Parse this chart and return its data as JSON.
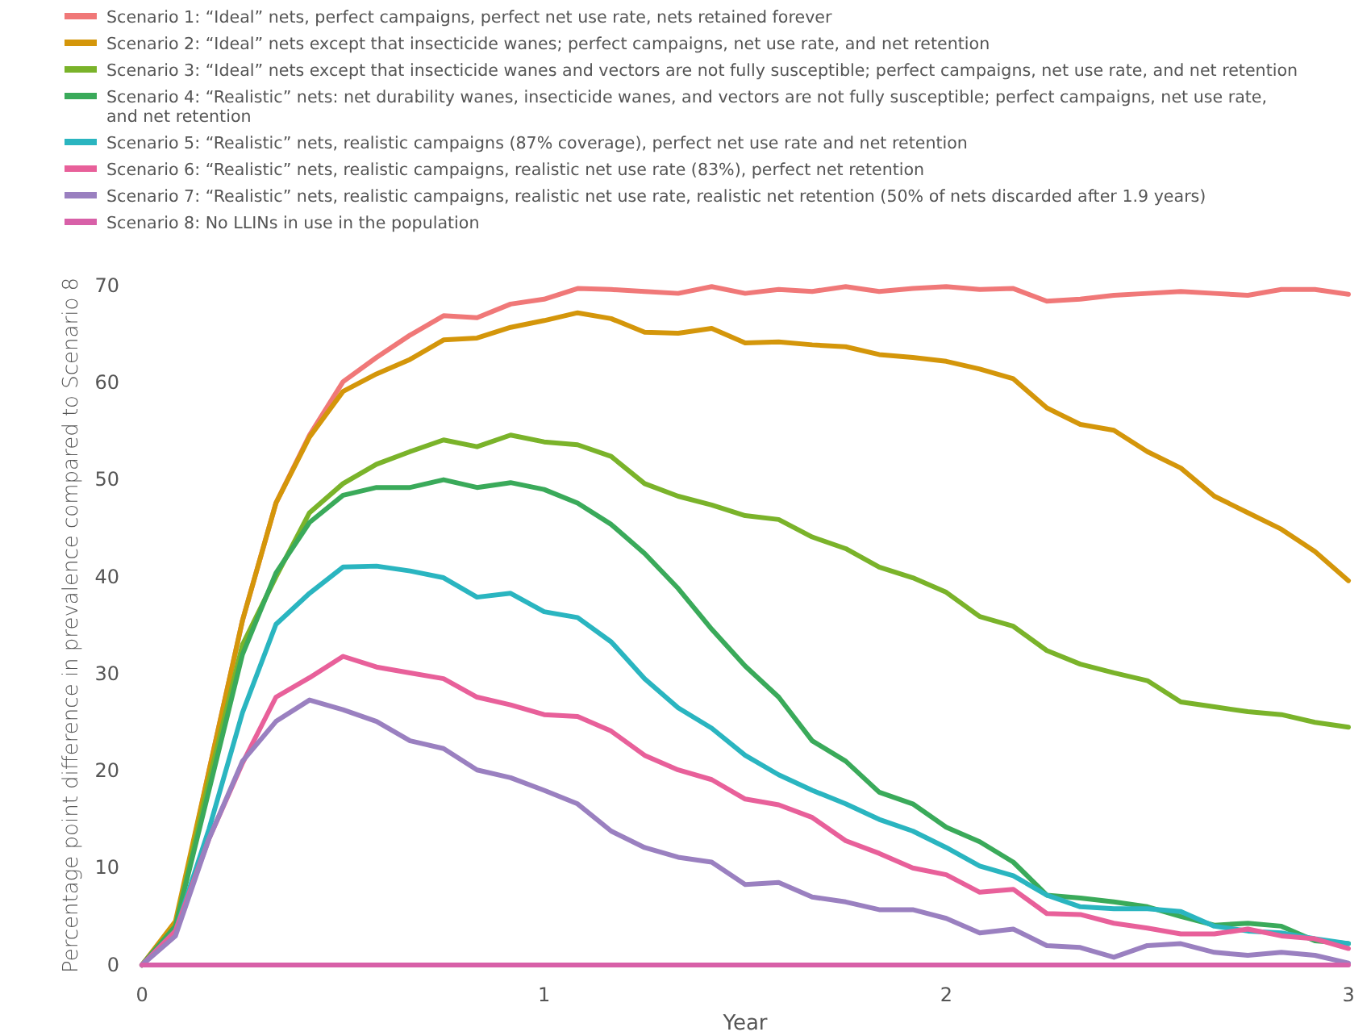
{
  "chart_data": {
    "type": "line",
    "xlabel": "Year",
    "ylabel": "Percentage point difference in prevalence compared to Scenario 8",
    "x": [
      0,
      0.0833,
      0.1667,
      0.25,
      0.3333,
      0.4167,
      0.5,
      0.5833,
      0.6667,
      0.75,
      0.8333,
      0.9167,
      1,
      1.0833,
      1.1667,
      1.25,
      1.3333,
      1.4167,
      1.5,
      1.5833,
      1.6667,
      1.75,
      1.8333,
      1.9167,
      2,
      2.0833,
      2.1667,
      2.25,
      2.3333,
      2.4167,
      2.5,
      2.5833,
      2.6667,
      2.75,
      2.8333,
      2.9167,
      3
    ],
    "xlim": [
      0,
      3
    ],
    "xticks": [
      0,
      1,
      2,
      3
    ],
    "ylim": [
      0,
      70
    ],
    "yticks": [
      0,
      10,
      20,
      30,
      40,
      50,
      60,
      70
    ],
    "grid": false,
    "legend": "top",
    "marker": "none",
    "line_style": "solid",
    "series": [
      {
        "name": "Scenario 1: “Ideal” nets, perfect campaigns, perfect net use rate, nets retained forever",
        "color": "#f07878",
        "values": [
          0,
          4,
          20,
          35.5,
          47.6,
          54.6,
          60.1,
          62.6,
          64.9,
          66.9,
          66.7,
          68.1,
          68.6,
          69.7,
          69.6,
          69.4,
          69.2,
          69.9,
          69.2,
          69.6,
          69.4,
          69.9,
          69.4,
          69.7,
          69.9,
          69.6,
          69.7,
          68.4,
          68.6,
          69,
          69.2,
          69.4,
          69.2,
          69,
          69.6,
          69.6,
          69.1
        ]
      },
      {
        "name": "Scenario 2: “Ideal” nets except that insecticide wanes; perfect campaigns, net use rate, and net retention",
        "color": "#d4960a",
        "values": [
          0,
          4.5,
          20,
          35.5,
          47.6,
          54.4,
          59.1,
          60.9,
          62.4,
          64.4,
          64.6,
          65.7,
          66.4,
          67.2,
          66.6,
          65.2,
          65.1,
          65.6,
          64.1,
          64.2,
          63.9,
          63.7,
          62.9,
          62.6,
          62.2,
          61.4,
          60.4,
          57.4,
          55.7,
          55.1,
          52.9,
          51.2,
          48.3,
          46.6,
          44.9,
          42.6,
          39.6
        ]
      },
      {
        "name": "Scenario 3: “Ideal” nets except that insecticide wanes and vectors are not fully susceptible; perfect campaigns, net use rate, and net retention",
        "color": "#7ab32a",
        "values": [
          0,
          4,
          19,
          33,
          40,
          46.6,
          49.6,
          51.6,
          52.9,
          54.1,
          53.4,
          54.6,
          53.9,
          53.6,
          52.4,
          49.6,
          48.3,
          47.4,
          46.3,
          45.9,
          44.1,
          42.9,
          41,
          39.9,
          38.4,
          35.9,
          34.9,
          32.4,
          31,
          30.1,
          29.3,
          27.1,
          26.6,
          26.1,
          25.8,
          25,
          24.5
        ]
      },
      {
        "name": "Scenario 4: “Realistic” nets: net durability wanes, insecticide wanes, and vectors are not fully susceptible; perfect campaigns, net use rate, and net retention",
        "color": "#3aaa5a",
        "values": [
          0,
          4,
          18,
          32,
          40.4,
          45.6,
          48.4,
          49.2,
          49.2,
          50,
          49.2,
          49.7,
          49,
          47.6,
          45.4,
          42.4,
          38.8,
          34.6,
          30.8,
          27.6,
          23.1,
          21,
          17.8,
          16.6,
          14.2,
          12.7,
          10.6,
          7.2,
          6.9,
          6.5,
          6,
          5,
          4.1,
          4.3,
          4,
          2.5,
          2.2
        ]
      },
      {
        "name": "Scenario 5: “Realistic” nets, realistic campaigns (87% coverage), perfect net use rate and net retention",
        "color": "#2ab5c0",
        "values": [
          0,
          3.5,
          14,
          26,
          35.1,
          38.3,
          41,
          41.1,
          40.6,
          39.9,
          37.9,
          38.3,
          36.4,
          35.8,
          33.3,
          29.5,
          26.5,
          24.4,
          21.6,
          19.6,
          18,
          16.6,
          15,
          13.8,
          12.1,
          10.2,
          9.2,
          7.2,
          6,
          5.8,
          5.8,
          5.5,
          4,
          3.5,
          3.3,
          2.7,
          2.2
        ]
      },
      {
        "name": "Scenario 6: “Realistic” nets, realistic campaigns, realistic net use rate (83%), perfect net retention",
        "color": "#e8609a",
        "values": [
          0,
          3.5,
          13,
          20.8,
          27.6,
          29.6,
          31.8,
          30.7,
          30.1,
          29.5,
          27.6,
          26.8,
          25.8,
          25.6,
          24.1,
          21.6,
          20.1,
          19.1,
          17.1,
          16.5,
          15.2,
          12.8,
          11.5,
          10,
          9.3,
          7.5,
          7.8,
          5.3,
          5.2,
          4.3,
          3.8,
          3.2,
          3.2,
          3.7,
          3,
          2.7,
          1.7
        ]
      },
      {
        "name": "Scenario 7: “Realistic” nets, realistic campaigns, realistic net use rate, realistic net retention (50% of nets discarded after 1.9 years)",
        "color": "#9a80c0",
        "values": [
          0,
          3,
          13,
          21,
          25.1,
          27.3,
          26.3,
          25.1,
          23.1,
          22.3,
          20.1,
          19.3,
          18,
          16.6,
          13.8,
          12.1,
          11.1,
          10.6,
          8.3,
          8.5,
          7,
          6.5,
          5.7,
          5.7,
          4.8,
          3.3,
          3.7,
          2,
          1.8,
          0.8,
          2,
          2.2,
          1.3,
          1,
          1.3,
          1,
          0.2
        ]
      },
      {
        "name": "Scenario 8: No LLINs in use in the population",
        "color": "#d860a8",
        "values": [
          0,
          0,
          0,
          0,
          0,
          0,
          0,
          0,
          0,
          0,
          0,
          0,
          0,
          0,
          0,
          0,
          0,
          0,
          0,
          0,
          0,
          0,
          0,
          0,
          0,
          0,
          0,
          0,
          0,
          0,
          0,
          0,
          0,
          0,
          0,
          0,
          0
        ]
      }
    ]
  }
}
